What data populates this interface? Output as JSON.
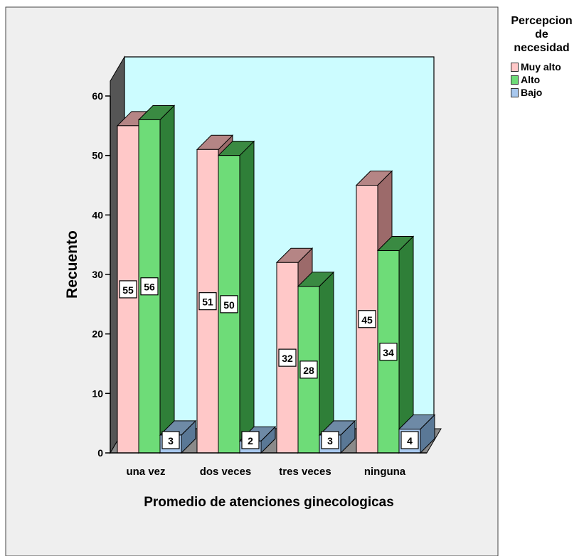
{
  "chart_data": {
    "type": "bar",
    "title": "",
    "xlabel": "Promedio de atenciones ginecologicas",
    "ylabel": "Recuento",
    "categories": [
      "una  vez",
      "dos veces",
      "tres veces",
      "ninguna"
    ],
    "ylim": [
      0,
      60
    ],
    "yticks": [
      "0",
      "10",
      "20",
      "30",
      "40",
      "50",
      "60"
    ],
    "series": [
      {
        "name": "Muy alto",
        "values": [
          55,
          51,
          32,
          45
        ]
      },
      {
        "name": "Alto",
        "values": [
          56,
          50,
          28,
          34
        ]
      },
      {
        "name": "Bajo",
        "values": [
          3,
          2,
          3,
          4
        ]
      }
    ],
    "data_labels": true,
    "style": "3d-clustered",
    "legend": {
      "title": "Percepcion de necesidad",
      "placement": "top-right outside",
      "colors": [
        "#ffc8c8",
        "#6edc78",
        "#a8c8ee"
      ]
    }
  },
  "legend_title_lines": [
    "Percepcion",
    "de",
    "necesidad"
  ],
  "colors": {
    "frame_bg": "#efefef",
    "wall": "#ccfcff",
    "floor": "#8a8a8a",
    "front_muy_alto": "#ffc8c8",
    "top_muy_alto": "#b58585",
    "side_muy_alto": "#9c6a6a",
    "front_alto": "#6edc78",
    "top_alto": "#3a8a42",
    "side_alto": "#2f7f38",
    "front_bajo": "#a8c8ee",
    "top_bajo": "#6e8aa6",
    "side_bajo": "#5a7896"
  }
}
